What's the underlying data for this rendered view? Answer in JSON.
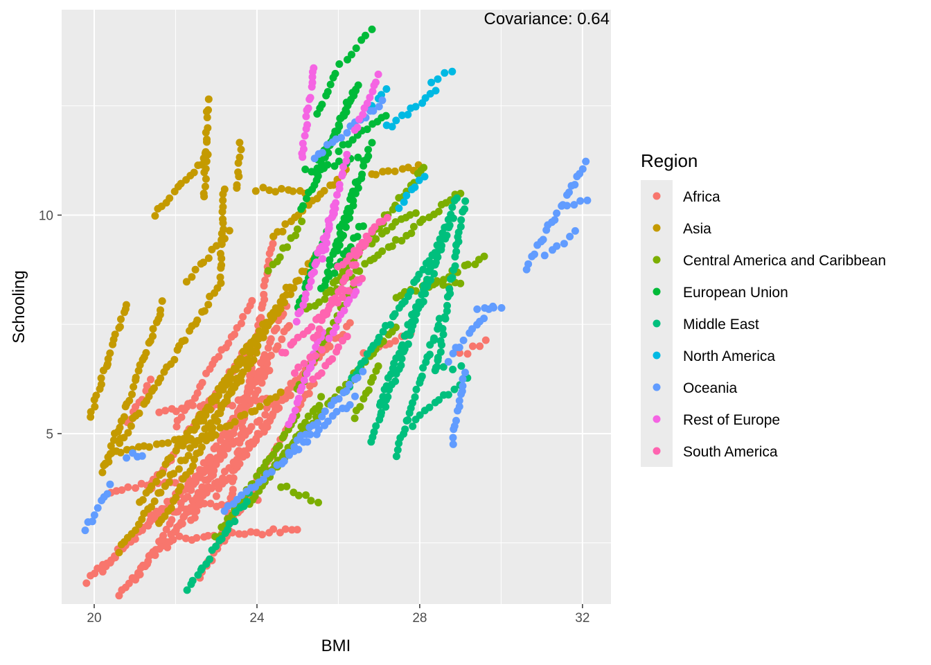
{
  "chart_data": {
    "type": "scatter",
    "title": "",
    "xlabel": "BMI",
    "ylabel": "Schooling",
    "xlim": [
      19.2,
      32.7
    ],
    "ylim": [
      1.1,
      14.7
    ],
    "x_ticks": [
      20,
      24,
      28,
      32
    ],
    "y_ticks": [
      5,
      10
    ],
    "grid": true,
    "annotation": "Covariance: 0.64",
    "legend": {
      "title": "Region",
      "placement": "right"
    },
    "series": [
      {
        "name": "Africa",
        "color": "#F8766D",
        "trends": [
          {
            "x0": 19.8,
            "x1": 22.8,
            "y0": 1.6,
            "y1": 4.3
          },
          {
            "x0": 20.2,
            "x1": 23.8,
            "y0": 1.9,
            "y1": 5.1
          },
          {
            "x0": 20.6,
            "x1": 24.5,
            "y0": 1.3,
            "y1": 5.5
          },
          {
            "x0": 20.8,
            "x1": 21.4,
            "y0": 5.2,
            "y1": 6.2
          },
          {
            "x0": 21.0,
            "x1": 24.8,
            "y0": 1.6,
            "y1": 7.5
          },
          {
            "x0": 21.4,
            "x1": 23.8,
            "y0": 3.8,
            "y1": 7.0
          },
          {
            "x0": 21.8,
            "x1": 24.3,
            "y0": 2.4,
            "y1": 6.5
          },
          {
            "x0": 22.0,
            "x1": 23.9,
            "y0": 5.2,
            "y1": 8.0
          },
          {
            "x0": 22.4,
            "x1": 24.7,
            "y0": 3.0,
            "y1": 7.9
          },
          {
            "x0": 22.6,
            "x1": 25.4,
            "y0": 1.7,
            "y1": 6.2
          },
          {
            "x0": 23.0,
            "x1": 25.8,
            "y0": 3.6,
            "y1": 7.2
          },
          {
            "x0": 23.2,
            "x1": 24.4,
            "y0": 2.6,
            "y1": 9.5
          },
          {
            "x0": 21.4,
            "x1": 24.0,
            "y0": 3.2,
            "y1": 3.5
          },
          {
            "x0": 21.6,
            "x1": 24.4,
            "y0": 5.5,
            "y1": 5.8
          },
          {
            "x0": 22.1,
            "x1": 25.0,
            "y0": 2.6,
            "y1": 2.8
          },
          {
            "x0": 23.5,
            "x1": 26.3,
            "y0": 4.8,
            "y1": 7.5
          },
          {
            "x0": 20.4,
            "x1": 22.6,
            "y0": 3.7,
            "y1": 4.0
          },
          {
            "x0": 26.6,
            "x1": 27.8,
            "y0": 6.8,
            "y1": 7.3
          },
          {
            "x0": 29.0,
            "x1": 29.6,
            "y0": 6.8,
            "y1": 7.1
          }
        ]
      },
      {
        "name": "Asia",
        "color": "#C49A00",
        "trends": [
          {
            "x0": 19.9,
            "x1": 20.8,
            "y0": 5.4,
            "y1": 8.0
          },
          {
            "x0": 20.2,
            "x1": 21.7,
            "y0": 4.1,
            "y1": 8.0
          },
          {
            "x0": 20.3,
            "x1": 23.0,
            "y0": 4.3,
            "y1": 8.3
          },
          {
            "x0": 20.6,
            "x1": 24.0,
            "y0": 2.3,
            "y1": 6.8
          },
          {
            "x0": 21.1,
            "x1": 24.4,
            "y0": 3.4,
            "y1": 7.8
          },
          {
            "x0": 21.6,
            "x1": 24.8,
            "y0": 2.9,
            "y1": 8.4
          },
          {
            "x0": 22.2,
            "x1": 25.6,
            "y0": 4.7,
            "y1": 9.3
          },
          {
            "x0": 21.5,
            "x1": 22.8,
            "y0": 10.0,
            "y1": 11.4
          },
          {
            "x0": 22.7,
            "x1": 22.8,
            "y0": 10.4,
            "y1": 12.6
          },
          {
            "x0": 23.5,
            "x1": 23.6,
            "y0": 10.6,
            "y1": 11.6
          },
          {
            "x0": 23.1,
            "x1": 23.2,
            "y0": 8.5,
            "y1": 10.6
          },
          {
            "x0": 22.3,
            "x1": 23.3,
            "y0": 8.5,
            "y1": 9.6
          },
          {
            "x0": 24.0,
            "x1": 25.2,
            "y0": 10.6,
            "y1": 10.5
          },
          {
            "x0": 24.4,
            "x1": 26.2,
            "y0": 9.5,
            "y1": 11.0
          },
          {
            "x0": 26.8,
            "x1": 28.0,
            "y0": 10.9,
            "y1": 11.1
          },
          {
            "x0": 20.5,
            "x1": 22.4,
            "y0": 4.6,
            "y1": 4.9
          },
          {
            "x0": 22.6,
            "x1": 24.6,
            "y0": 4.8,
            "y1": 5.9
          }
        ]
      },
      {
        "name": "Central America and Caribbean",
        "color": "#7CAE00",
        "trends": [
          {
            "x0": 23.0,
            "x1": 25.0,
            "y0": 2.6,
            "y1": 5.4
          },
          {
            "x0": 23.8,
            "x1": 25.6,
            "y0": 3.4,
            "y1": 5.8
          },
          {
            "x0": 24.2,
            "x1": 27.4,
            "y0": 4.0,
            "y1": 7.4
          },
          {
            "x0": 25.0,
            "x1": 26.4,
            "y0": 6.0,
            "y1": 8.4
          },
          {
            "x0": 25.2,
            "x1": 29.0,
            "y0": 7.8,
            "y1": 10.5
          },
          {
            "x0": 25.7,
            "x1": 28.1,
            "y0": 8.2,
            "y1": 11.1
          },
          {
            "x0": 26.2,
            "x1": 27.9,
            "y0": 9.0,
            "y1": 10.1
          },
          {
            "x0": 27.4,
            "x1": 29.6,
            "y0": 8.1,
            "y1": 9.0
          },
          {
            "x0": 28.1,
            "x1": 29.0,
            "y0": 8.4,
            "y1": 8.4
          },
          {
            "x0": 26.4,
            "x1": 27.0,
            "y0": 5.4,
            "y1": 6.5
          },
          {
            "x0": 24.6,
            "x1": 25.5,
            "y0": 3.8,
            "y1": 3.4
          },
          {
            "x0": 24.3,
            "x1": 25.1,
            "y0": 8.7,
            "y1": 9.8
          }
        ]
      },
      {
        "name": "European Union",
        "color": "#00BA38",
        "trends": [
          {
            "x0": 25.1,
            "x1": 26.4,
            "y0": 10.1,
            "y1": 12.9
          },
          {
            "x0": 25.4,
            "x1": 26.5,
            "y0": 11.0,
            "y1": 13.0
          },
          {
            "x0": 25.6,
            "x1": 26.4,
            "y0": 8.3,
            "y1": 10.7
          },
          {
            "x0": 26.0,
            "x1": 26.8,
            "y0": 9.2,
            "y1": 11.6
          },
          {
            "x0": 26.2,
            "x1": 26.8,
            "y0": 13.6,
            "y1": 14.2
          },
          {
            "x0": 25.5,
            "x1": 26.0,
            "y0": 12.3,
            "y1": 13.4
          },
          {
            "x0": 25.0,
            "x1": 25.7,
            "y0": 7.9,
            "y1": 9.6
          },
          {
            "x0": 25.8,
            "x1": 26.6,
            "y0": 8.6,
            "y1": 9.8
          },
          {
            "x0": 26.0,
            "x1": 27.2,
            "y0": 11.5,
            "y1": 12.3
          },
          {
            "x0": 25.2,
            "x1": 26.6,
            "y0": 11.0,
            "y1": 11.3
          }
        ]
      },
      {
        "name": "Middle East",
        "color": "#00BF7D",
        "trends": [
          {
            "x0": 22.3,
            "x1": 23.8,
            "y0": 1.4,
            "y1": 3.6
          },
          {
            "x0": 26.2,
            "x1": 28.6,
            "y0": 6.0,
            "y1": 9.5
          },
          {
            "x0": 26.8,
            "x1": 28.8,
            "y0": 4.8,
            "y1": 9.9
          },
          {
            "x0": 27.0,
            "x1": 28.9,
            "y0": 5.6,
            "y1": 10.4
          },
          {
            "x0": 27.4,
            "x1": 28.5,
            "y0": 4.5,
            "y1": 7.6
          },
          {
            "x0": 27.8,
            "x1": 29.2,
            "y0": 5.2,
            "y1": 6.3
          },
          {
            "x0": 28.4,
            "x1": 29.1,
            "y0": 6.4,
            "y1": 10.3
          },
          {
            "x0": 28.4,
            "x1": 29.0,
            "y0": 6.5,
            "y1": 6.5
          }
        ]
      },
      {
        "name": "North America",
        "color": "#00B9E3",
        "trends": [
          {
            "x0": 27.2,
            "x1": 28.4,
            "y0": 12.0,
            "y1": 12.8
          },
          {
            "x0": 27.5,
            "x1": 28.1,
            "y0": 10.2,
            "y1": 10.9
          },
          {
            "x0": 28.3,
            "x1": 28.8,
            "y0": 13.0,
            "y1": 13.3
          },
          {
            "x0": 26.6,
            "x1": 27.2,
            "y0": 12.3,
            "y1": 12.9
          }
        ]
      },
      {
        "name": "Oceania",
        "color": "#619CFF",
        "trends": [
          {
            "x0": 19.8,
            "x1": 20.4,
            "y0": 2.8,
            "y1": 3.8
          },
          {
            "x0": 20.8,
            "x1": 21.2,
            "y0": 4.5,
            "y1": 4.5
          },
          {
            "x0": 23.2,
            "x1": 26.4,
            "y0": 3.2,
            "y1": 5.8
          },
          {
            "x0": 24.8,
            "x1": 26.6,
            "y0": 4.6,
            "y1": 6.4
          },
          {
            "x0": 25.4,
            "x1": 27.1,
            "y0": 11.3,
            "y1": 12.6
          },
          {
            "x0": 29.4,
            "x1": 30.0,
            "y0": 7.9,
            "y1": 7.9
          },
          {
            "x0": 28.7,
            "x1": 29.8,
            "y0": 6.7,
            "y1": 7.9
          },
          {
            "x0": 28.8,
            "x1": 29.1,
            "y0": 4.8,
            "y1": 6.4
          },
          {
            "x0": 30.6,
            "x1": 32.1,
            "y0": 8.8,
            "y1": 11.2
          },
          {
            "x0": 31.1,
            "x1": 31.8,
            "y0": 9.1,
            "y1": 9.6
          },
          {
            "x0": 31.6,
            "x1": 32.1,
            "y0": 10.2,
            "y1": 10.3
          }
        ]
      },
      {
        "name": "Rest of Europe",
        "color": "#F564E3",
        "trends": [
          {
            "x0": 24.8,
            "x1": 25.6,
            "y0": 5.2,
            "y1": 7.3
          },
          {
            "x0": 25.0,
            "x1": 25.9,
            "y0": 7.6,
            "y1": 10.2
          },
          {
            "x0": 25.1,
            "x1": 25.4,
            "y0": 11.3,
            "y1": 13.4
          },
          {
            "x0": 25.6,
            "x1": 26.2,
            "y0": 9.0,
            "y1": 11.4
          },
          {
            "x0": 26.4,
            "x1": 27.0,
            "y0": 11.9,
            "y1": 13.2
          },
          {
            "x0": 25.8,
            "x1": 26.5,
            "y0": 7.2,
            "y1": 8.4
          }
        ]
      },
      {
        "name": "South America",
        "color": "#FF64B0",
        "trends": [
          {
            "x0": 24.6,
            "x1": 26.6,
            "y0": 6.8,
            "y1": 8.6
          },
          {
            "x0": 25.4,
            "x1": 26.8,
            "y0": 7.2,
            "y1": 9.6
          },
          {
            "x0": 26.0,
            "x1": 27.2,
            "y0": 8.8,
            "y1": 10.0
          },
          {
            "x0": 24.9,
            "x1": 25.6,
            "y0": 6.4,
            "y1": 6.9
          },
          {
            "x0": 25.4,
            "x1": 26.2,
            "y0": 6.2,
            "y1": 7.2
          }
        ]
      }
    ]
  }
}
